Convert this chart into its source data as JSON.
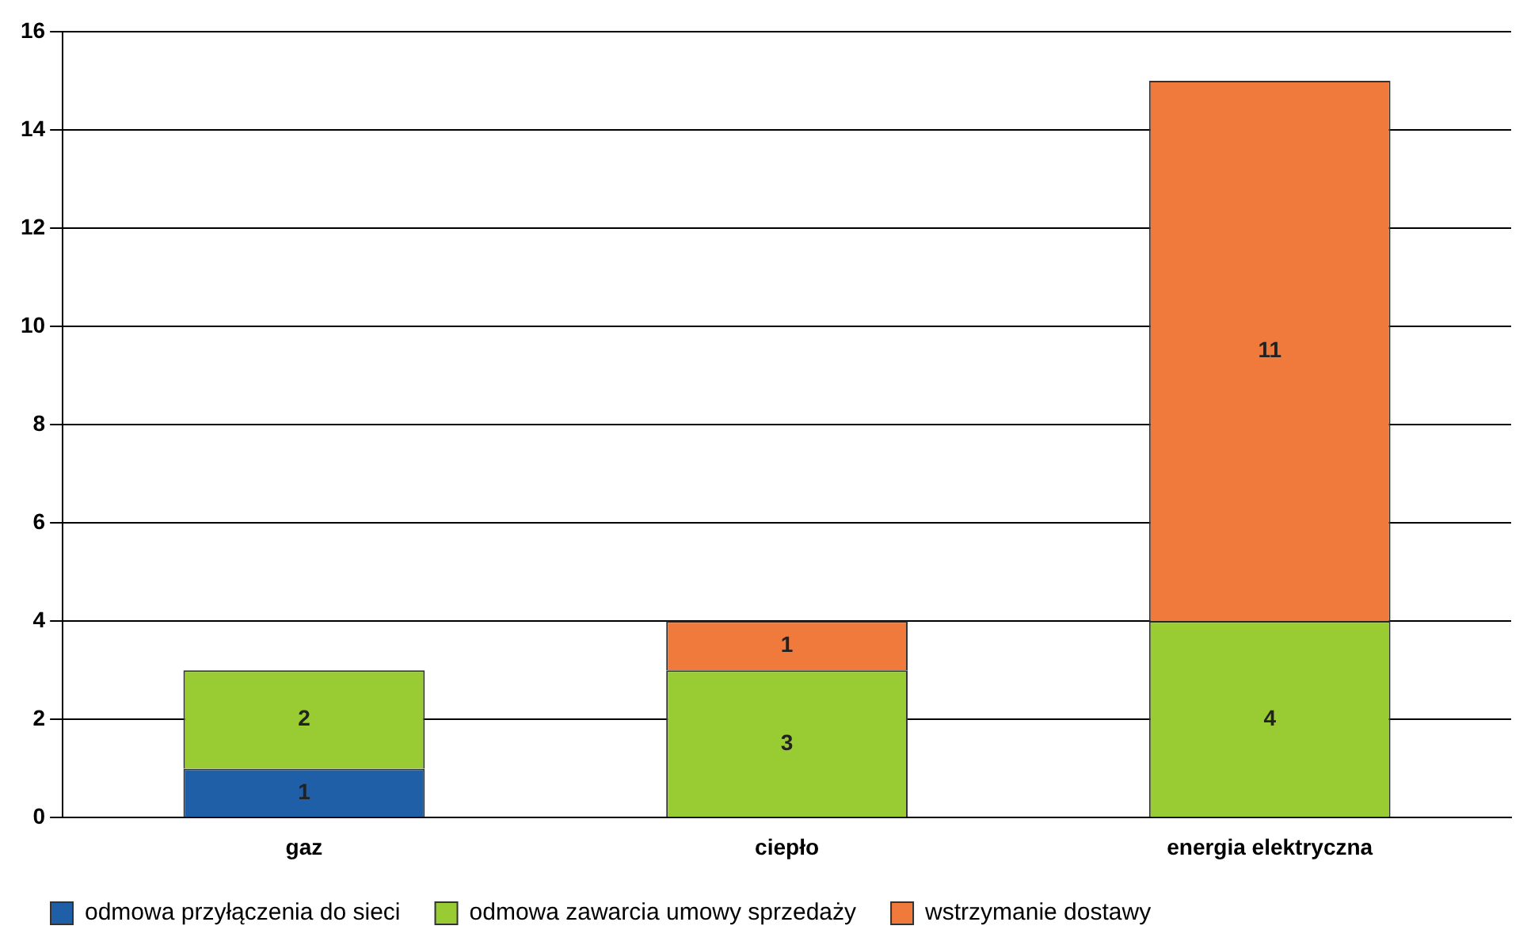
{
  "chart_data": {
    "type": "bar",
    "stacked": true,
    "categories": [
      "gaz",
      "ciepło",
      "energia elektryczna"
    ],
    "series": [
      {
        "name": "odmowa przyłączenia do sieci",
        "color": "#1f5fa8",
        "values": [
          1,
          null,
          null
        ]
      },
      {
        "name": "odmowa zawarcia umowy sprzedaży",
        "color": "#99cc33",
        "values": [
          2,
          3,
          4
        ]
      },
      {
        "name": "wstrzymanie dostawy",
        "color": "#f07a3c",
        "values": [
          null,
          1,
          11
        ]
      }
    ],
    "ylim": [
      0,
      16
    ],
    "yticks": [
      0,
      2,
      4,
      6,
      8,
      10,
      12,
      14,
      16
    ],
    "grid": "y",
    "legend": "bottom",
    "data_labels": true
  }
}
